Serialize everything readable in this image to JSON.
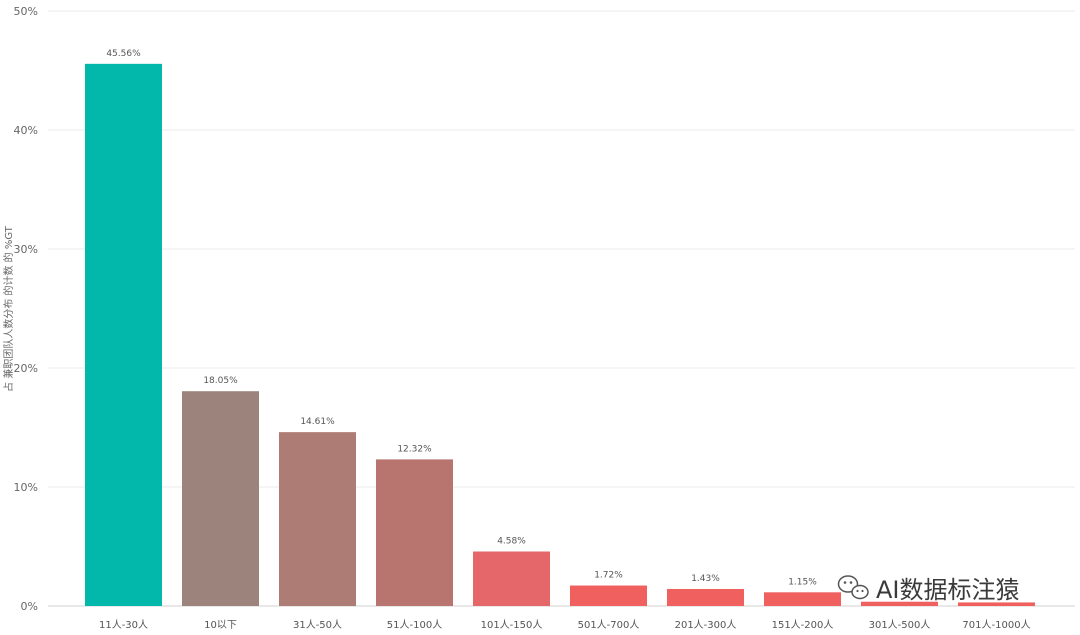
{
  "chart_data": {
    "type": "bar",
    "ylabel": "占 兼职团队人数分布 的计数 的 %GT",
    "ylim": [
      0,
      50
    ],
    "yticks": [
      "0%",
      "10%",
      "20%",
      "30%",
      "40%",
      "50%"
    ],
    "categories": [
      "11人-30人",
      "10以下",
      "31人-50人",
      "51人-100人",
      "101人-150人",
      "501人-700人",
      "201人-300人",
      "151人-200人",
      "301人-500人",
      "701人-1000人"
    ],
    "values": [
      45.56,
      18.05,
      14.61,
      12.32,
      4.58,
      1.72,
      1.43,
      1.15,
      0.36,
      0.3
    ],
    "data_labels": [
      "45.56%",
      "18.05%",
      "14.61%",
      "12.32%",
      "4.58%",
      "1.72%",
      "1.43%",
      "1.15%",
      "",
      ""
    ],
    "colors": [
      "#01b8aa",
      "#9c847c",
      "#ad7c74",
      "#b8756f",
      "#e6676a",
      "#f0605f",
      "#f0605f",
      "#f0605f",
      "#f0605f",
      "#f0605f"
    ],
    "grid": true,
    "legend": "none"
  },
  "watermark": {
    "icon": "wechat-icon",
    "text": "AI数据标注猿"
  }
}
